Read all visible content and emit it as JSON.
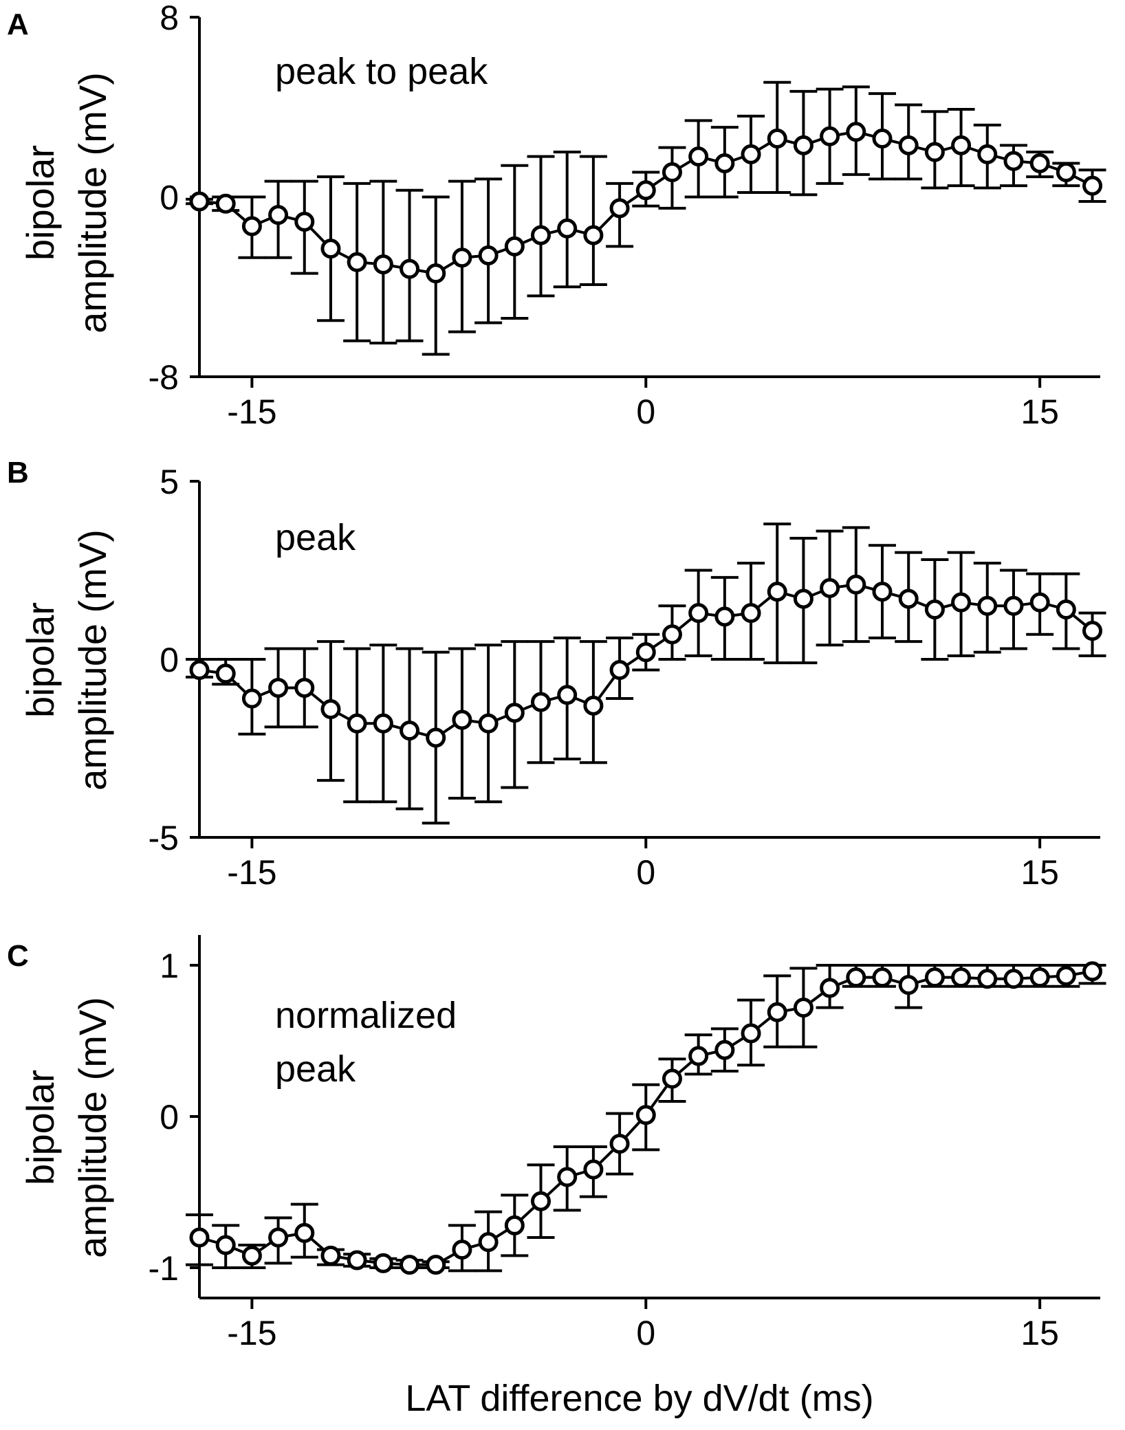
{
  "figure": {
    "xlabel": "LAT difference by dV/dt (ms)"
  },
  "chart_data": [
    {
      "type": "line",
      "panel_label": "A",
      "annotation": [
        "peak to peak"
      ],
      "ylabel_lines": [
        "bipolar",
        "amplitude (mV)"
      ],
      "xlim": [
        -17,
        17.3
      ],
      "ylim": [
        -8,
        8
      ],
      "xticks": [
        -15,
        0,
        15
      ],
      "xtick_labels": [
        "-15",
        "0",
        "15"
      ],
      "yticks": [
        -8,
        0,
        8
      ],
      "ytick_labels": [
        "-8",
        "0",
        "8"
      ],
      "x": [
        -17,
        -16,
        -15,
        -14,
        -13,
        -12,
        -11,
        -10,
        -9,
        -8,
        -7,
        -6,
        -5,
        -4,
        -3,
        -2,
        -1,
        0,
        1,
        2,
        3,
        4,
        5,
        6,
        7,
        8,
        9,
        10,
        11,
        12,
        13,
        14,
        15,
        16,
        17
      ],
      "values": [
        -0.2,
        -0.3,
        -1.3,
        -0.8,
        -1.1,
        -2.3,
        -2.9,
        -3.0,
        -3.2,
        -3.4,
        -2.7,
        -2.6,
        -2.2,
        -1.7,
        -1.4,
        -1.7,
        -0.5,
        0.3,
        1.1,
        1.8,
        1.5,
        1.9,
        2.6,
        2.3,
        2.7,
        2.9,
        2.6,
        2.3,
        2.0,
        2.3,
        1.9,
        1.6,
        1.5,
        1.1,
        0.5
      ],
      "error_upper": [
        -0.1,
        0.0,
        0.0,
        0.7,
        0.7,
        0.9,
        0.6,
        0.7,
        0.3,
        0.0,
        0.7,
        0.8,
        1.4,
        1.8,
        2.0,
        1.8,
        0.6,
        1.1,
        2.2,
        3.4,
        3.1,
        3.6,
        5.1,
        4.7,
        4.8,
        4.9,
        4.6,
        4.1,
        3.8,
        3.9,
        3.2,
        2.3,
        2.0,
        1.5,
        1.2
      ],
      "error_lower": [
        -0.3,
        -0.6,
        -2.7,
        -2.7,
        -3.4,
        -5.5,
        -6.4,
        -6.5,
        -6.4,
        -7.0,
        -6.0,
        -5.6,
        -5.4,
        -4.4,
        -4.0,
        -3.9,
        -2.2,
        -0.4,
        -0.5,
        0.0,
        0.0,
        0.2,
        0.2,
        0.1,
        0.6,
        1.0,
        0.8,
        0.8,
        0.4,
        0.5,
        0.4,
        0.5,
        0.9,
        0.5,
        -0.2
      ]
    },
    {
      "type": "line",
      "panel_label": "B",
      "annotation": [
        "peak"
      ],
      "ylabel_lines": [
        "bipolar",
        "amplitude (mV)"
      ],
      "xlim": [
        -17,
        17.3
      ],
      "ylim": [
        -5,
        5
      ],
      "xticks": [
        -15,
        0,
        15
      ],
      "xtick_labels": [
        "-15",
        "0",
        "15"
      ],
      "yticks": [
        -5,
        0,
        5
      ],
      "ytick_labels": [
        "-5",
        "0",
        "5"
      ],
      "x": [
        -17,
        -16,
        -15,
        -14,
        -13,
        -12,
        -11,
        -10,
        -9,
        -8,
        -7,
        -6,
        -5,
        -4,
        -3,
        -2,
        -1,
        0,
        1,
        2,
        3,
        4,
        5,
        6,
        7,
        8,
        9,
        10,
        11,
        12,
        13,
        14,
        15,
        16,
        17
      ],
      "values": [
        -0.3,
        -0.4,
        -1.1,
        -0.8,
        -0.8,
        -1.4,
        -1.8,
        -1.8,
        -2.0,
        -2.2,
        -1.7,
        -1.8,
        -1.5,
        -1.2,
        -1.0,
        -1.3,
        -0.3,
        0.2,
        0.7,
        1.3,
        1.2,
        1.3,
        1.9,
        1.7,
        2.0,
        2.1,
        1.9,
        1.7,
        1.4,
        1.6,
        1.5,
        1.5,
        1.6,
        1.4,
        0.8
      ],
      "error_upper": [
        0.0,
        0.0,
        0.0,
        0.3,
        0.3,
        0.5,
        0.3,
        0.4,
        0.3,
        0.2,
        0.3,
        0.4,
        0.5,
        0.5,
        0.6,
        0.5,
        0.6,
        0.7,
        1.5,
        2.5,
        2.3,
        2.7,
        3.8,
        3.4,
        3.6,
        3.7,
        3.2,
        3.0,
        2.8,
        3.0,
        2.7,
        2.5,
        2.4,
        2.4,
        1.3
      ],
      "error_lower": [
        -0.5,
        -0.7,
        -2.1,
        -1.9,
        -1.9,
        -3.4,
        -4.0,
        -4.0,
        -4.2,
        -4.6,
        -3.9,
        -4.0,
        -3.6,
        -2.9,
        -2.8,
        -2.9,
        -1.1,
        -0.3,
        0.0,
        0.1,
        0.0,
        0.0,
        -0.1,
        -0.1,
        0.4,
        0.5,
        0.6,
        0.5,
        0.0,
        0.1,
        0.2,
        0.3,
        0.7,
        0.3,
        0.1
      ]
    },
    {
      "type": "line",
      "panel_label": "C",
      "annotation": [
        "normalized",
        "peak"
      ],
      "ylabel_lines": [
        "bipolar",
        "amplitude (mV)"
      ],
      "xlim": [
        -17,
        17.3
      ],
      "ylim": [
        -1.2,
        1.2
      ],
      "xticks": [
        -15,
        0,
        15
      ],
      "xtick_labels": [
        "-15",
        "0",
        "15"
      ],
      "yticks": [
        -1,
        0,
        1
      ],
      "ytick_labels": [
        "-1",
        "0",
        "1"
      ],
      "x": [
        -17,
        -16,
        -15,
        -14,
        -13,
        -12,
        -11,
        -10,
        -9,
        -8,
        -7,
        -6,
        -5,
        -4,
        -3,
        -2,
        -1,
        0,
        1,
        2,
        3,
        4,
        5,
        6,
        7,
        8,
        9,
        10,
        11,
        12,
        13,
        14,
        15,
        16,
        17
      ],
      "values": [
        -0.8,
        -0.85,
        -0.92,
        -0.8,
        -0.77,
        -0.92,
        -0.95,
        -0.97,
        -0.98,
        -0.98,
        -0.88,
        -0.83,
        -0.72,
        -0.56,
        -0.4,
        -0.35,
        -0.18,
        0.01,
        0.25,
        0.4,
        0.44,
        0.55,
        0.69,
        0.72,
        0.85,
        0.92,
        0.92,
        0.87,
        0.92,
        0.92,
        0.91,
        0.91,
        0.92,
        0.93,
        0.96
      ],
      "error_upper": [
        -0.65,
        -0.72,
        -0.85,
        -0.67,
        -0.58,
        -0.88,
        -0.91,
        -0.94,
        -0.95,
        -0.96,
        -0.72,
        -0.63,
        -0.52,
        -0.32,
        -0.2,
        -0.2,
        0.02,
        0.21,
        0.38,
        0.54,
        0.58,
        0.77,
        0.93,
        0.98,
        1.0,
        1.0,
        1.0,
        1.0,
        1.0,
        1.0,
        1.0,
        1.0,
        1.0,
        1.0,
        1.0
      ],
      "error_lower": [
        -0.98,
        -1.0,
        -1.0,
        -0.97,
        -0.93,
        -0.98,
        -0.99,
        -1.0,
        -1.0,
        -1.0,
        -1.02,
        -1.02,
        -0.92,
        -0.8,
        -0.62,
        -0.53,
        -0.38,
        -0.22,
        0.1,
        0.28,
        0.3,
        0.34,
        0.46,
        0.46,
        0.72,
        0.86,
        0.86,
        0.72,
        0.86,
        0.86,
        0.86,
        0.86,
        0.86,
        0.86,
        0.88
      ]
    }
  ]
}
